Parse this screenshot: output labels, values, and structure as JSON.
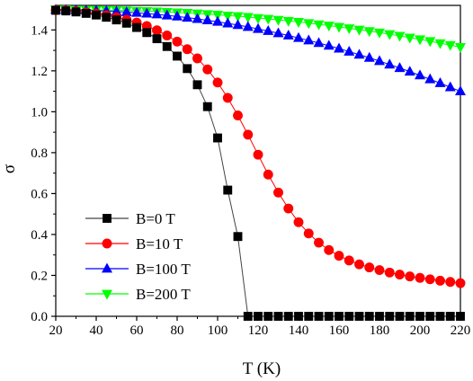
{
  "chart_data": {
    "type": "line",
    "title": "",
    "xlabel": "T (K)",
    "ylabel": "σ",
    "xlim": [
      20,
      220
    ],
    "ylim": [
      0.0,
      1.52
    ],
    "xticks": [
      20,
      40,
      60,
      80,
      100,
      120,
      140,
      160,
      180,
      200,
      220
    ],
    "yticks": [
      0.0,
      0.2,
      0.4,
      0.6,
      0.8,
      1.0,
      1.2,
      1.4
    ],
    "xtick_labels": [
      "20",
      "40",
      "60",
      "80",
      "100",
      "120",
      "140",
      "160",
      "180",
      "200",
      "220"
    ],
    "ytick_labels": [
      "0.0",
      "0.2",
      "0.4",
      "0.6",
      "0.8",
      "1.0",
      "1.2",
      "1.4"
    ],
    "grid": false,
    "legend_position": "lower-left",
    "series": [
      {
        "name": "B=0 T",
        "color": "#000000",
        "marker": "square",
        "x": [
          20,
          25,
          30,
          35,
          40,
          45,
          50,
          55,
          60,
          65,
          70,
          75,
          80,
          85,
          90,
          95,
          100,
          105,
          110,
          115,
          120,
          125,
          130,
          135,
          140,
          145,
          150,
          155,
          160,
          165,
          170,
          175,
          180,
          185,
          190,
          195,
          200,
          205,
          210,
          215,
          220
        ],
        "y": [
          1.496,
          1.493,
          1.488,
          1.481,
          1.473,
          1.462,
          1.449,
          1.433,
          1.412,
          1.387,
          1.357,
          1.319,
          1.272,
          1.211,
          1.132,
          1.025,
          0.872,
          0.617,
          0.39,
          0.0,
          0.0,
          0.0,
          0.0,
          0.0,
          0.0,
          0.0,
          0.0,
          0.0,
          0.0,
          0.0,
          0.0,
          0.0,
          0.0,
          0.0,
          0.0,
          0.0,
          0.0,
          0.0,
          0.0,
          0.0,
          0.0
        ]
      },
      {
        "name": "B=10 T",
        "color": "#ff0000",
        "marker": "circle",
        "x": [
          20,
          25,
          30,
          35,
          40,
          45,
          50,
          55,
          60,
          65,
          70,
          75,
          80,
          85,
          90,
          95,
          100,
          105,
          110,
          115,
          120,
          125,
          130,
          135,
          140,
          145,
          150,
          155,
          160,
          165,
          170,
          175,
          180,
          185,
          190,
          195,
          200,
          205,
          210,
          215,
          220
        ],
        "y": [
          1.497,
          1.495,
          1.491,
          1.486,
          1.48,
          1.472,
          1.462,
          1.45,
          1.436,
          1.419,
          1.398,
          1.373,
          1.343,
          1.306,
          1.261,
          1.207,
          1.143,
          1.068,
          0.982,
          0.888,
          0.79,
          0.693,
          0.605,
          0.527,
          0.46,
          0.405,
          0.36,
          0.324,
          0.296,
          0.273,
          0.254,
          0.239,
          0.226,
          0.214,
          0.204,
          0.195,
          0.188,
          0.181,
          0.174,
          0.168,
          0.162
        ]
      },
      {
        "name": "B=100 T",
        "color": "#0000ff",
        "marker": "triangle-up",
        "x": [
          20,
          25,
          30,
          35,
          40,
          45,
          50,
          55,
          60,
          65,
          70,
          75,
          80,
          85,
          90,
          95,
          100,
          105,
          110,
          115,
          120,
          125,
          130,
          135,
          140,
          145,
          150,
          155,
          160,
          165,
          170,
          175,
          180,
          185,
          190,
          195,
          200,
          205,
          210,
          215,
          220
        ],
        "y": [
          1.499,
          1.498,
          1.497,
          1.496,
          1.494,
          1.492,
          1.49,
          1.487,
          1.484,
          1.48,
          1.476,
          1.471,
          1.466,
          1.46,
          1.454,
          1.447,
          1.44,
          1.432,
          1.424,
          1.415,
          1.405,
          1.395,
          1.384,
          1.373,
          1.361,
          1.349,
          1.336,
          1.323,
          1.309,
          1.294,
          1.279,
          1.264,
          1.248,
          1.231,
          1.214,
          1.196,
          1.178,
          1.159,
          1.14,
          1.12,
          1.1
        ]
      },
      {
        "name": "B=200 T",
        "color": "#00ff00",
        "marker": "triangle-down",
        "x": [
          20,
          25,
          30,
          35,
          40,
          45,
          50,
          55,
          60,
          65,
          70,
          75,
          80,
          85,
          90,
          95,
          100,
          105,
          110,
          115,
          120,
          125,
          130,
          135,
          140,
          145,
          150,
          155,
          160,
          165,
          170,
          175,
          180,
          185,
          190,
          195,
          200,
          205,
          210,
          215,
          220
        ],
        "y": [
          1.5,
          1.5,
          1.499,
          1.499,
          1.498,
          1.497,
          1.496,
          1.495,
          1.493,
          1.492,
          1.49,
          1.488,
          1.485,
          1.483,
          1.48,
          1.477,
          1.474,
          1.47,
          1.467,
          1.463,
          1.458,
          1.454,
          1.449,
          1.444,
          1.439,
          1.433,
          1.427,
          1.421,
          1.415,
          1.408,
          1.401,
          1.394,
          1.387,
          1.379,
          1.371,
          1.362,
          1.354,
          1.345,
          1.335,
          1.326,
          1.316
        ]
      }
    ]
  }
}
